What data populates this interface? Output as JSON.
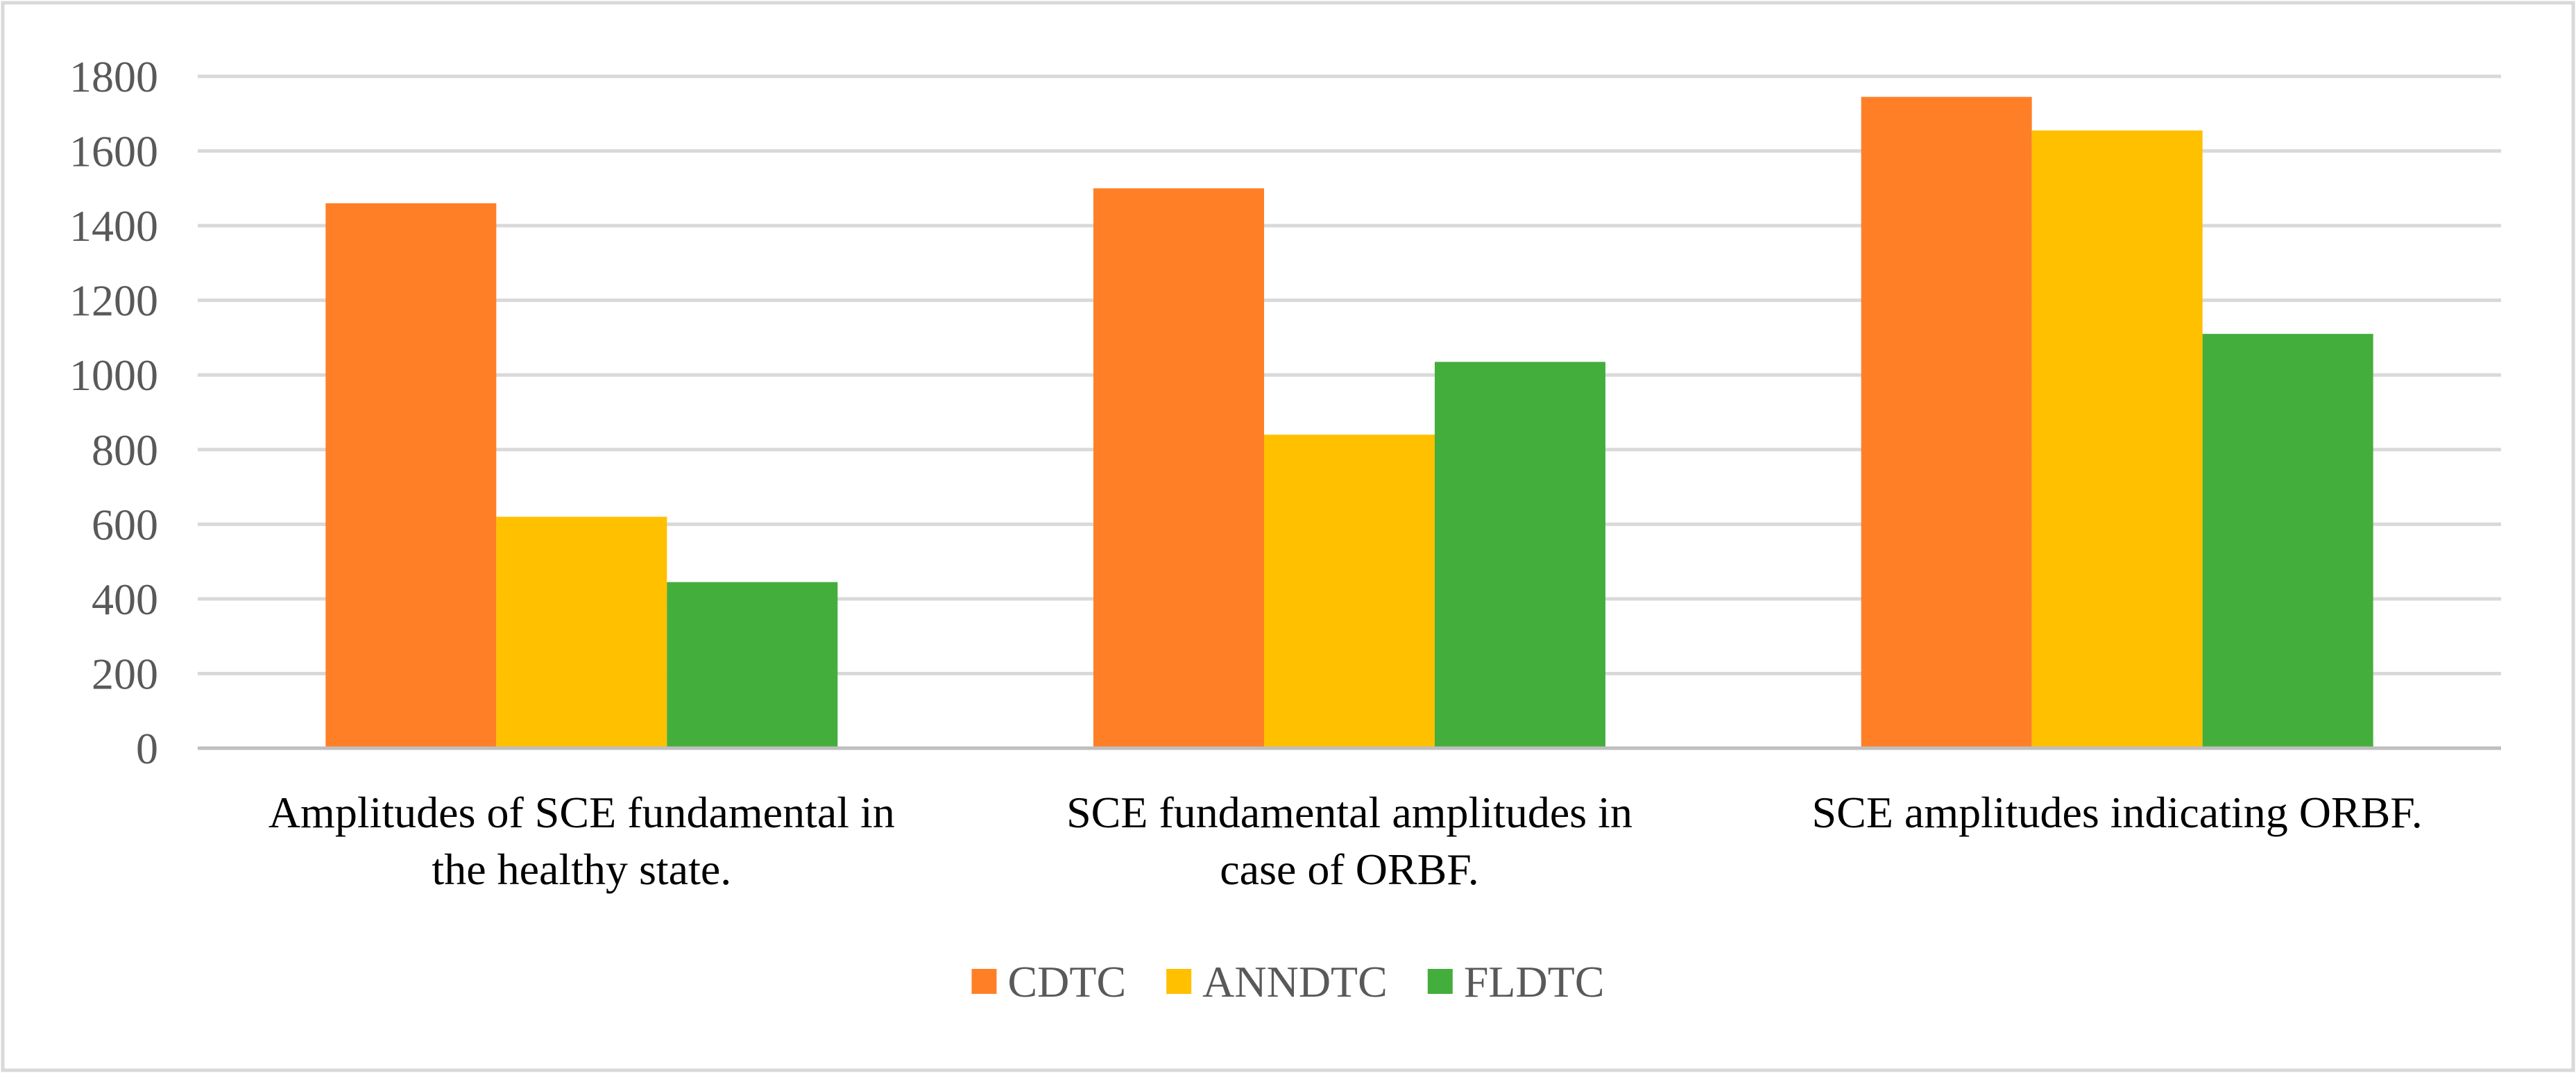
{
  "chart_data": {
    "type": "bar",
    "title": "",
    "xlabel": "",
    "ylabel": "",
    "ylim": [
      0,
      1800
    ],
    "yticks": [
      0,
      200,
      400,
      600,
      800,
      1000,
      1200,
      1400,
      1600,
      1800
    ],
    "grid": true,
    "legend_position": "bottom",
    "categories": [
      [
        "Amplitudes of SCE fundamental in",
        "the healthy state."
      ],
      [
        "SCE fundamental amplitudes in",
        "case of ORBF."
      ],
      [
        "SCE amplitudes indicating ORBF."
      ]
    ],
    "series": [
      {
        "name": "CDTC",
        "color": "#FF7F27",
        "values": [
          1460,
          1500,
          1745
        ]
      },
      {
        "name": "ANNDTC",
        "color": "#FFC000",
        "values": [
          620,
          840,
          1655
        ]
      },
      {
        "name": "FLDTC",
        "color": "#44AE3C",
        "values": [
          445,
          1035,
          1110
        ]
      }
    ],
    "colors": {
      "grid": "#D9D9D9",
      "axis": "#BFBFBF",
      "frame": "#D9D9D9"
    }
  }
}
